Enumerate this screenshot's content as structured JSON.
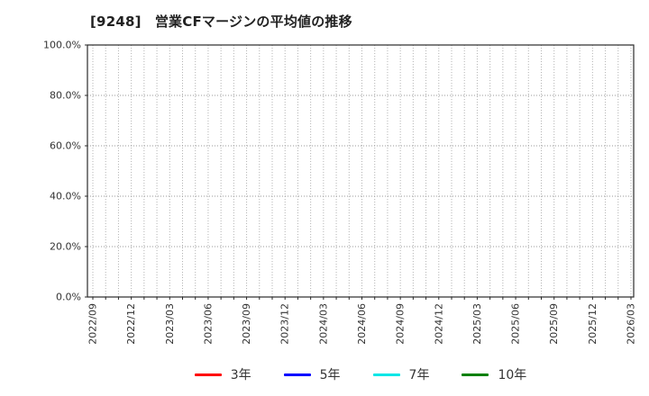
{
  "title": "[9248]　営業CFマージンの平均値の推移",
  "chart_data": {
    "type": "line",
    "title": "[9248]　営業CFマージンの平均値の推移",
    "x_labels": [
      "2022/09",
      "2022/12",
      "2023/03",
      "2023/06",
      "2023/09",
      "2023/12",
      "2024/03",
      "2024/06",
      "2024/09",
      "2024/12",
      "2025/03",
      "2025/06",
      "2025/09",
      "2025/12",
      "2026/03"
    ],
    "x_minor_divisions": 3,
    "y_axis": {
      "min": 0,
      "max": 100,
      "tick_values": [
        0,
        20,
        40,
        60,
        80,
        100
      ],
      "tick_labels": [
        "0.0%",
        "20.0%",
        "40.0%",
        "60.0%",
        "80.0%",
        "100.0%"
      ]
    },
    "grid": true,
    "legend_position": "bottom",
    "series": [
      {
        "name": "3年",
        "color": "#ff0000",
        "values": []
      },
      {
        "name": "5年",
        "color": "#0000ff",
        "values": []
      },
      {
        "name": "7年",
        "color": "#00e6e6",
        "values": []
      },
      {
        "name": "10年",
        "color": "#008000",
        "values": []
      }
    ]
  },
  "colors": {
    "axis": "#2b2b2b",
    "grid_minor": "#b3b3b3",
    "grid_major": "#999999",
    "title_text": "#222222",
    "tick_text": "#333333",
    "legend_text": "#333333",
    "background": "#ffffff"
  }
}
